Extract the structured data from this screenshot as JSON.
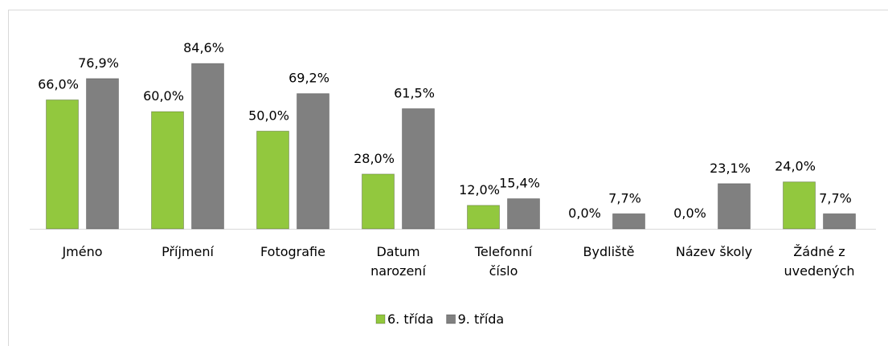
{
  "chart_data": {
    "type": "bar",
    "categories": [
      "Jméno",
      "Příjmení",
      "Fotografie",
      "Datum\nnarození",
      "Telefonní\nčíslo",
      "Bydliště",
      "Název školy",
      "Žádné z\nuvedených"
    ],
    "series": [
      {
        "name": "6. třída",
        "color": "#92c83e",
        "values": [
          66.0,
          60.0,
          50.0,
          28.0,
          12.0,
          0.0,
          0.0,
          24.0
        ],
        "value_labels": [
          "66,0%",
          "60,0%",
          "50,0%",
          "28,0%",
          "12,0%",
          "0,0%",
          "0,0%",
          "24,0%"
        ]
      },
      {
        "name": "9. třída",
        "color": "#808080",
        "values": [
          76.9,
          84.6,
          69.2,
          61.5,
          15.4,
          7.7,
          23.1,
          7.7
        ],
        "value_labels": [
          "76,9%",
          "84,6%",
          "69,2%",
          "61,5%",
          "15,4%",
          "7,7%",
          "23,1%",
          "7,7%"
        ]
      }
    ],
    "ylim": [
      0,
      90
    ],
    "legend": "bottom"
  }
}
